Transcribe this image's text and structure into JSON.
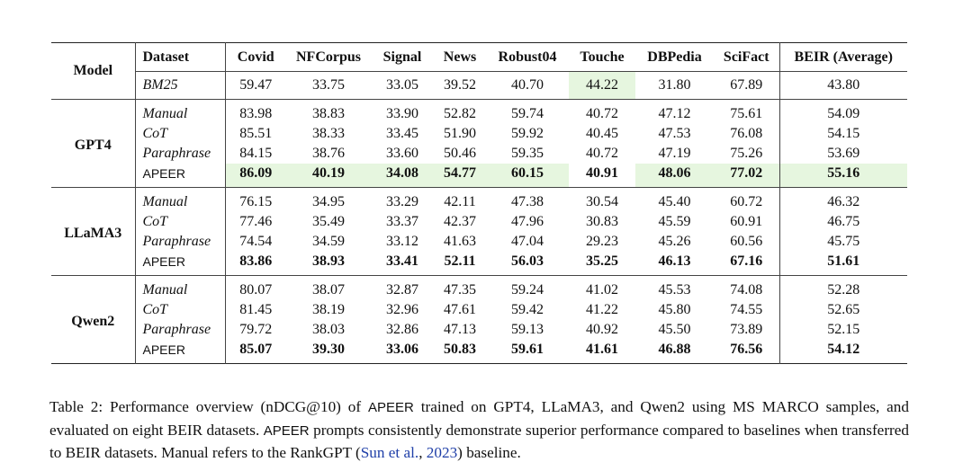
{
  "table": {
    "header": [
      "Model",
      "Dataset",
      "Covid",
      "NFCorpus",
      "Signal",
      "News",
      "Robust04",
      "Touche",
      "DBPedia",
      "SciFact",
      "BEIR (Average)"
    ],
    "baseline": {
      "dataset": "BM25",
      "values": [
        "59.47",
        "33.75",
        "33.05",
        "39.52",
        "40.70",
        "44.22",
        "31.80",
        "67.89",
        "43.80"
      ]
    },
    "groups": [
      {
        "model": "GPT4",
        "rows": [
          {
            "dataset": "Manual",
            "values": [
              "83.98",
              "38.83",
              "33.90",
              "52.82",
              "59.74",
              "40.72",
              "47.12",
              "75.61",
              "54.09"
            ]
          },
          {
            "dataset": "CoT",
            "values": [
              "85.51",
              "38.33",
              "33.45",
              "51.90",
              "59.92",
              "40.45",
              "47.53",
              "76.08",
              "54.15"
            ]
          },
          {
            "dataset": "Paraphrase",
            "values": [
              "84.15",
              "38.76",
              "33.60",
              "50.46",
              "59.35",
              "40.72",
              "47.19",
              "75.26",
              "53.69"
            ]
          },
          {
            "dataset": "APEER",
            "values": [
              "86.09",
              "40.19",
              "34.08",
              "54.77",
              "60.15",
              "40.91",
              "48.06",
              "77.02",
              "55.16"
            ]
          }
        ]
      },
      {
        "model": "LLaMA3",
        "rows": [
          {
            "dataset": "Manual",
            "values": [
              "76.15",
              "34.95",
              "33.29",
              "42.11",
              "47.38",
              "30.54",
              "45.40",
              "60.72",
              "46.32"
            ]
          },
          {
            "dataset": "CoT",
            "values": [
              "77.46",
              "35.49",
              "33.37",
              "42.37",
              "47.96",
              "30.83",
              "45.59",
              "60.91",
              "46.75"
            ]
          },
          {
            "dataset": "Paraphrase",
            "values": [
              "74.54",
              "34.59",
              "33.12",
              "41.63",
              "47.04",
              "29.23",
              "45.26",
              "60.56",
              "45.75"
            ]
          },
          {
            "dataset": "APEER",
            "values": [
              "83.86",
              "38.93",
              "33.41",
              "52.11",
              "56.03",
              "35.25",
              "46.13",
              "67.16",
              "51.61"
            ]
          }
        ]
      },
      {
        "model": "Qwen2",
        "rows": [
          {
            "dataset": "Manual",
            "values": [
              "80.07",
              "38.07",
              "32.87",
              "47.35",
              "59.24",
              "41.02",
              "45.53",
              "74.08",
              "52.28"
            ]
          },
          {
            "dataset": "CoT",
            "values": [
              "81.45",
              "38.19",
              "32.96",
              "47.61",
              "59.42",
              "41.22",
              "45.80",
              "74.55",
              "52.65"
            ]
          },
          {
            "dataset": "Paraphrase",
            "values": [
              "79.72",
              "38.03",
              "32.86",
              "47.13",
              "59.13",
              "40.92",
              "45.50",
              "73.89",
              "52.15"
            ]
          },
          {
            "dataset": "APEER",
            "values": [
              "85.07",
              "39.30",
              "33.06",
              "50.83",
              "59.61",
              "41.61",
              "46.88",
              "76.56",
              "54.12"
            ]
          }
        ]
      }
    ]
  },
  "caption": {
    "label": "Table 2:",
    "text1": "Performance overview (nDCG@10) of",
    "method1": "APEER",
    "text2": "trained on GPT4, LLaMA3, and Qwen2 using MS MARCO samples, and evaluated on eight BEIR datasets.",
    "method2": "APEER",
    "text3": "prompts consistently demonstrate superior performance compared to baselines when transferred to BEIR datasets. Manual refers to the RankGPT (",
    "cite_author": "Sun et al.",
    "cite_sep": ",",
    "cite_year": "2023",
    "text4": ") baseline."
  }
}
